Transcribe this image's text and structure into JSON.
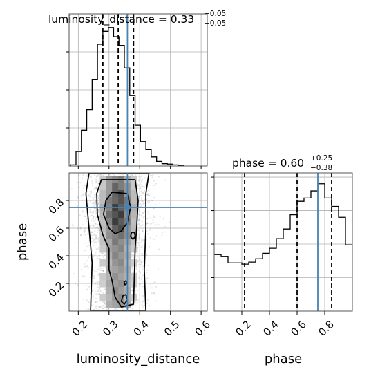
{
  "chart_data": [
    {
      "panel": "marginal-luminosity_distance",
      "type": "histogram",
      "title": {
        "name": "luminosity_distance",
        "median": "0.33",
        "plus": "+0.05",
        "minus": "−0.05"
      },
      "xlim": [
        0.17,
        0.62
      ],
      "xticks": [
        0.2,
        0.3,
        0.4,
        0.5,
        0.6
      ],
      "grid": true,
      "bin_edges": [
        0.175,
        0.1925,
        0.21,
        0.2275,
        0.245,
        0.2625,
        0.28,
        0.2975,
        0.315,
        0.3325,
        0.35,
        0.3675,
        0.385,
        0.4025,
        0.42,
        0.4375,
        0.455,
        0.4725,
        0.49,
        0.5075,
        0.525,
        0.5425
      ],
      "counts": [
        0.3,
        3.8,
        9.4,
        14.8,
        22.8,
        32.0,
        35.4,
        36.4,
        34.0,
        31.7,
        25.8,
        18.5,
        10.7,
        6.4,
        4.3,
        2.4,
        1.2,
        0.6,
        0.5,
        0.3,
        0.1
      ],
      "ylim": [
        0,
        40
      ],
      "quantiles": [
        0.28,
        0.33,
        0.38
      ],
      "truth": 0.36,
      "colors": {
        "hist": "#000000",
        "truth": "#4682b4"
      }
    },
    {
      "panel": "marginal-phase",
      "type": "histogram",
      "title": {
        "name": "phase",
        "median": "0.60",
        "plus": "+0.25",
        "minus": "−0.38"
      },
      "xlim": [
        0.0,
        1.0
      ],
      "xticks": [
        0.2,
        0.4,
        0.6,
        0.8
      ],
      "xlabel": "phase",
      "grid": true,
      "bin_edges": [
        0.0,
        0.05,
        0.1,
        0.15,
        0.2,
        0.25,
        0.3,
        0.35,
        0.4,
        0.45,
        0.5,
        0.55,
        0.6,
        0.65,
        0.7,
        0.75,
        0.8,
        0.85,
        0.9,
        0.95,
        1.0
      ],
      "counts": [
        13.5,
        13.0,
        11.5,
        11.5,
        11.2,
        11.7,
        12.5,
        13.8,
        15.0,
        17.3,
        19.6,
        23.0,
        26.2,
        27.0,
        28.7,
        30.4,
        27.0,
        25.0,
        22.4,
        15.8
      ],
      "ylim": [
        0,
        33
      ],
      "quantiles": [
        0.22,
        0.6,
        0.85
      ],
      "truth": 0.75,
      "colors": {
        "hist": "#000000",
        "truth": "#4682b4"
      }
    },
    {
      "panel": "joint-luminosity_distance-phase",
      "type": "scatter",
      "xlabel": "luminosity_distance",
      "ylabel": "phase",
      "xlim": [
        0.17,
        0.62
      ],
      "ylim": [
        0.0,
        1.0
      ],
      "xticks": [
        0.2,
        0.3,
        0.4,
        0.5,
        0.6
      ],
      "yticks": [
        0.2,
        0.4,
        0.6,
        0.8
      ],
      "grid": true,
      "density_columns_x": [
        0.26,
        0.28,
        0.3,
        0.32,
        0.34,
        0.36,
        0.38,
        0.4
      ],
      "density_rows_y": [
        0.95,
        0.9,
        0.85,
        0.8,
        0.75,
        0.7,
        0.65,
        0.6,
        0.55,
        0.5,
        0.45,
        0.4,
        0.35,
        0.3,
        0.25,
        0.2,
        0.15,
        0.1,
        0.05
      ],
      "contours": [
        {
          "level": "outer",
          "points": [
            [
              0.43,
              1.0
            ],
            [
              0.42,
              0.85
            ],
            [
              0.42,
              0.6
            ],
            [
              0.415,
              0.3
            ],
            [
              0.42,
              0.0
            ],
            [
              0.24,
              0.0
            ],
            [
              0.245,
              0.35
            ],
            [
              0.235,
              0.6
            ],
            [
              0.225,
              0.85
            ],
            [
              0.235,
              1.0
            ]
          ]
        },
        {
          "level": "mid",
          "points": [
            [
              0.385,
              0.95
            ],
            [
              0.395,
              0.8
            ],
            [
              0.39,
              0.6
            ],
            [
              0.385,
              0.45
            ],
            [
              0.38,
              0.05
            ],
            [
              0.34,
              0.03
            ],
            [
              0.32,
              0.1
            ],
            [
              0.31,
              0.22
            ],
            [
              0.3,
              0.3
            ],
            [
              0.3,
              0.45
            ],
            [
              0.28,
              0.55
            ],
            [
              0.262,
              0.7
            ],
            [
              0.26,
              0.85
            ],
            [
              0.275,
              0.95
            ]
          ]
        },
        {
          "level": "inner",
          "points": [
            [
              0.36,
              0.85
            ],
            [
              0.37,
              0.75
            ],
            [
              0.36,
              0.64
            ],
            [
              0.34,
              0.58
            ],
            [
              0.32,
              0.56
            ],
            [
              0.3,
              0.6
            ],
            [
              0.282,
              0.7
            ],
            [
              0.29,
              0.8
            ],
            [
              0.31,
              0.86
            ]
          ]
        },
        {
          "level": "inner-small",
          "points": [
            [
              0.382,
              0.57
            ],
            [
              0.386,
              0.54
            ],
            [
              0.378,
              0.52
            ],
            [
              0.37,
              0.54
            ],
            [
              0.374,
              0.57
            ]
          ]
        },
        {
          "level": "inner-bottom",
          "points": [
            [
              0.355,
              0.12
            ],
            [
              0.36,
              0.08
            ],
            [
              0.35,
              0.05
            ],
            [
              0.34,
              0.07
            ],
            [
              0.345,
              0.11
            ]
          ]
        },
        {
          "level": "inner-speck",
          "points": [
            [
              0.355,
              0.22
            ],
            [
              0.358,
              0.2
            ],
            [
              0.352,
              0.19
            ],
            [
              0.349,
              0.21
            ]
          ]
        }
      ],
      "truth": {
        "x": 0.36,
        "y": 0.75
      },
      "colors": {
        "points": "#000000",
        "truth": "#4682b4",
        "contour": "#000000"
      }
    }
  ]
}
